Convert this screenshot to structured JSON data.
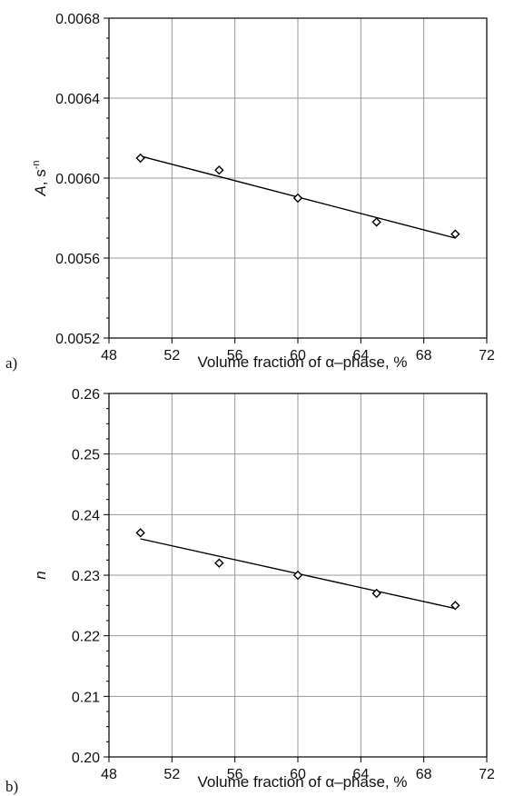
{
  "chart_data": [
    {
      "type": "scatter",
      "panel_label": "a)",
      "xlabel": "Volume fraction of α–phase, %",
      "ylabel_main": "A",
      "ylabel_rest": ", s",
      "ylabel_sup": "-n",
      "xlim": [
        48,
        72
      ],
      "ylim": [
        0.0052,
        0.0068
      ],
      "x_ticks": [
        "48",
        "52",
        "56",
        "60",
        "64",
        "68",
        "72"
      ],
      "y_ticks": [
        "0.0052",
        "0.0056",
        "0.0060",
        "0.0064",
        "0.0068"
      ],
      "grid": true,
      "series": [
        {
          "marker": "diamond",
          "points": [
            {
              "x": 50,
              "y": 0.0061
            },
            {
              "x": 55,
              "y": 0.00604
            },
            {
              "x": 60,
              "y": 0.0059
            },
            {
              "x": 65,
              "y": 0.00578
            },
            {
              "x": 70,
              "y": 0.00572
            }
          ]
        }
      ],
      "trendline": {
        "x": [
          50,
          70
        ],
        "y": [
          0.00611,
          0.0057
        ]
      }
    },
    {
      "type": "scatter",
      "panel_label": "b)",
      "xlabel": "Volume fraction of α–phase, %",
      "ylabel_main": "n",
      "ylabel_rest": "",
      "ylabel_sup": "",
      "xlim": [
        48,
        72
      ],
      "ylim": [
        0.2,
        0.26
      ],
      "x_ticks": [
        "48",
        "52",
        "56",
        "60",
        "64",
        "68",
        "72"
      ],
      "y_ticks": [
        "0.20",
        "0.21",
        "0.22",
        "0.23",
        "0.24",
        "0.25",
        "0.26"
      ],
      "grid": true,
      "series": [
        {
          "marker": "diamond",
          "points": [
            {
              "x": 50,
              "y": 0.237
            },
            {
              "x": 55,
              "y": 0.232
            },
            {
              "x": 60,
              "y": 0.23
            },
            {
              "x": 65,
              "y": 0.227
            },
            {
              "x": 70,
              "y": 0.225
            }
          ]
        }
      ],
      "trendline": {
        "x": [
          50,
          70
        ],
        "y": [
          0.236,
          0.2245
        ]
      }
    }
  ]
}
